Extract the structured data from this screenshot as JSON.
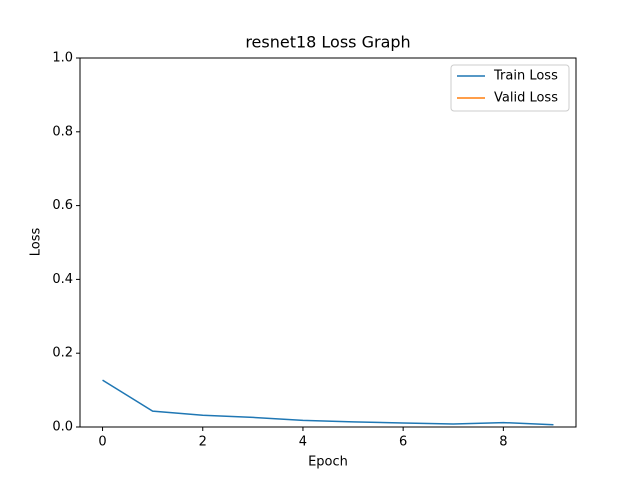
{
  "chart_data": {
    "type": "line",
    "title": "resnet18 Loss Graph",
    "xlabel": "Epoch",
    "ylabel": "Loss",
    "x": [
      0,
      1,
      2,
      3,
      4,
      5,
      6,
      7,
      8,
      9
    ],
    "series": [
      {
        "name": "Train Loss",
        "color": "#1f77b4",
        "values": [
          0.127,
          0.043,
          0.032,
          0.026,
          0.018,
          0.014,
          0.011,
          0.008,
          0.012,
          0.006
        ]
      },
      {
        "name": "Valid Loss",
        "color": "#ff7f0e",
        "values": [
          null,
          null,
          null,
          null,
          null,
          null,
          null,
          null,
          null,
          null
        ]
      }
    ],
    "xlim": [
      -0.45,
      9.45
    ],
    "xticks": [
      0,
      2,
      4,
      6,
      8
    ],
    "ylim": [
      0,
      1
    ],
    "yticks": [
      {
        "value": 0,
        "label": "0.0"
      },
      {
        "value": 0.2,
        "label": "0.2"
      },
      {
        "value": 0.4,
        "label": "0.4"
      },
      {
        "value": 0.6,
        "label": "0.6"
      },
      {
        "value": 0.8,
        "label": "0.8"
      },
      {
        "value": 1,
        "label": "1.0"
      }
    ],
    "grid": false,
    "legend": "upper right"
  }
}
